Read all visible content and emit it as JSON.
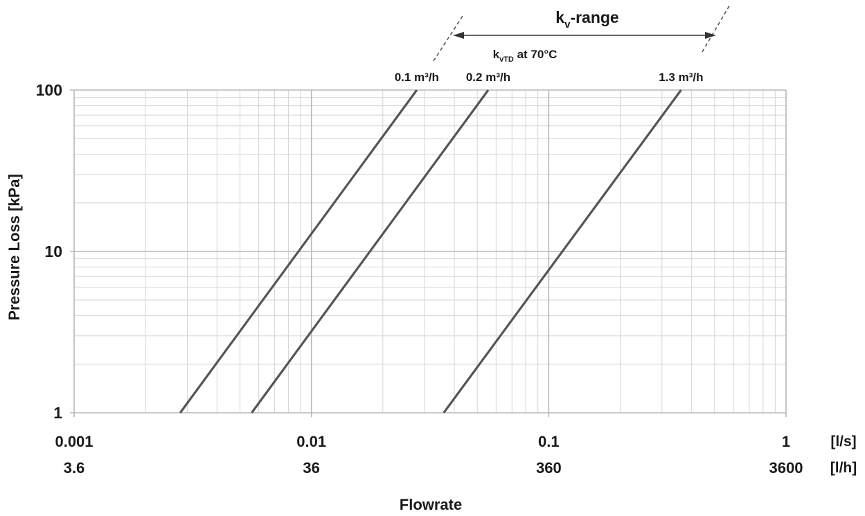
{
  "chart_data": {
    "type": "line",
    "xscale": "log",
    "yscale": "log",
    "xlim": [
      0.001,
      1
    ],
    "ylim": [
      1,
      100
    ],
    "grid": true,
    "xlabel": "Flowrate",
    "ylabel": "Pressure Loss [kPa]",
    "x_ticks": [
      {
        "value": 0.001,
        "label": "0.001",
        "alt_label": "3.6"
      },
      {
        "value": 0.01,
        "label": "0.01",
        "alt_label": "36"
      },
      {
        "value": 0.1,
        "label": "0.1",
        "alt_label": "360"
      },
      {
        "value": 1,
        "label": "1",
        "alt_label": "3600"
      }
    ],
    "x_units": [
      "[l/s]",
      "[l/h]"
    ],
    "y_ticks": [
      {
        "value": 1,
        "label": "1"
      },
      {
        "value": 10,
        "label": "10"
      },
      {
        "value": 100,
        "label": "100"
      }
    ],
    "series": [
      {
        "name": "0.1 m³/h",
        "kv": 0.1,
        "x": [
          0.0028,
          0.0278
        ],
        "y": [
          1,
          100
        ]
      },
      {
        "name": "0.2 m³/h",
        "kv": 0.2,
        "x": [
          0.0056,
          0.0556
        ],
        "y": [
          1,
          100
        ]
      },
      {
        "name": "1.3 m³/h",
        "kv": 1.3,
        "x": [
          0.0361,
          0.361
        ],
        "y": [
          1,
          100
        ]
      }
    ],
    "annotations": {
      "kv_range_main": "k",
      "kv_range_sub": "v",
      "kv_range_tail": "-range",
      "kvtd_main": "k",
      "kvtd_sub": "vTD",
      "kvtd_tail": " at 70°C"
    },
    "colors": {
      "line": "#555555",
      "grid_major": "#b8b8b8",
      "grid_minor": "#d4d4d4",
      "text": "#1a1a1a"
    }
  }
}
